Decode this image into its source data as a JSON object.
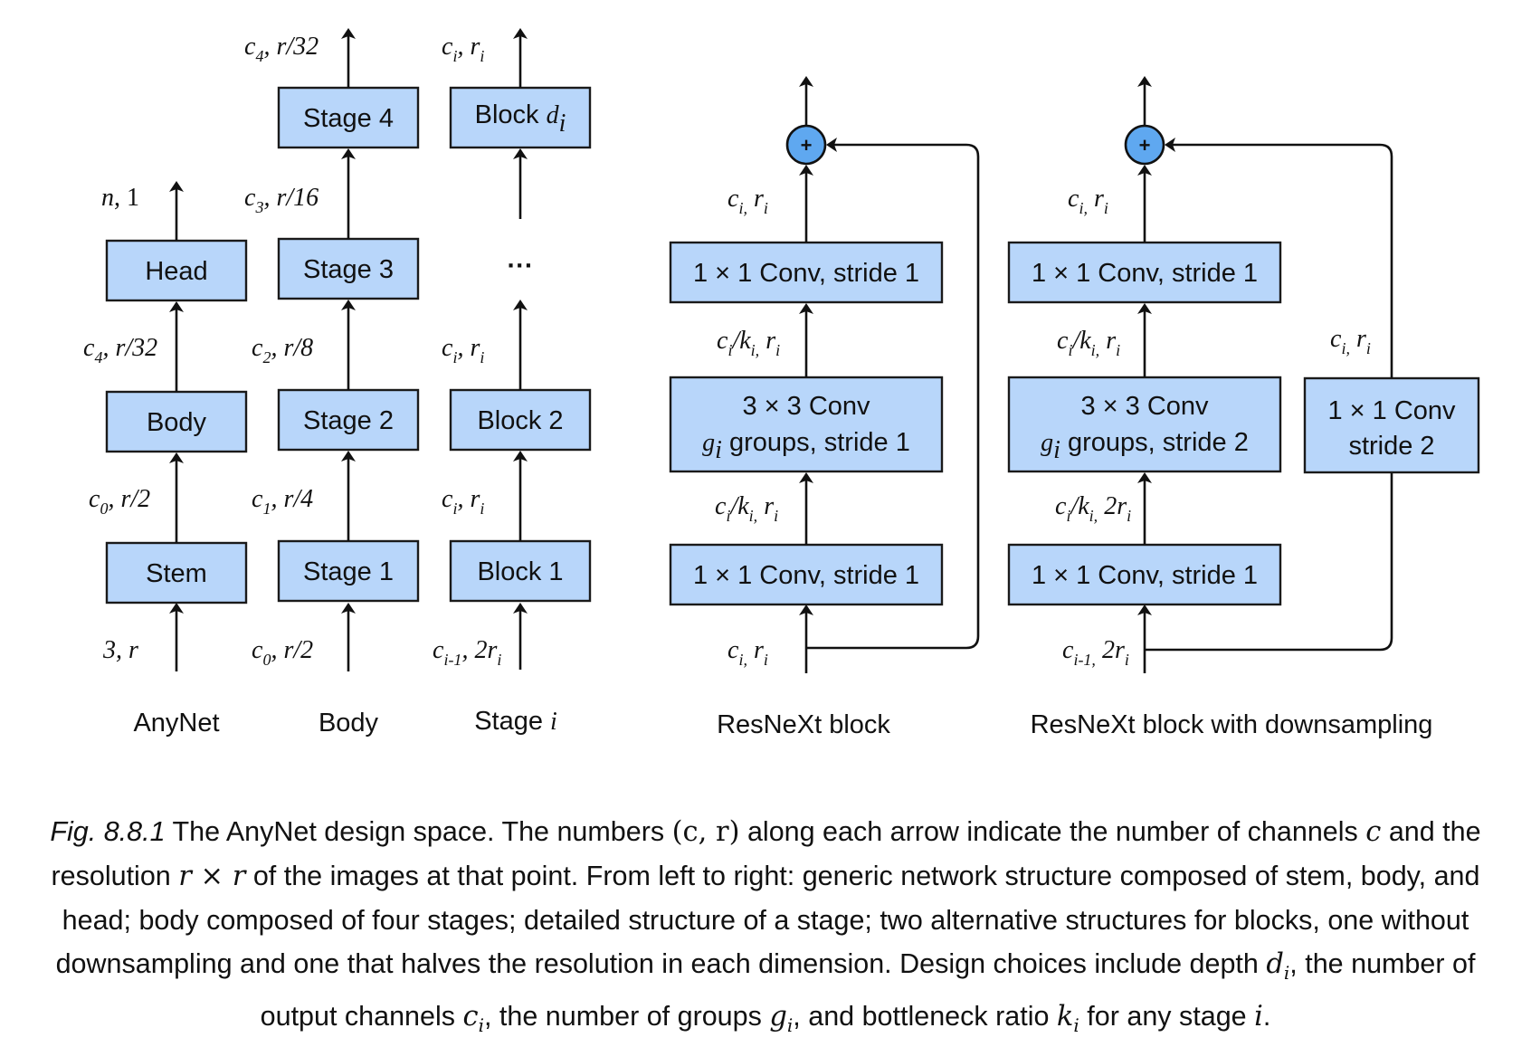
{
  "anynet": {
    "boxes": {
      "head": "Head",
      "body": "Body",
      "stem": "Stem"
    },
    "labels": {
      "head_out_main": "n",
      "head_out_rest": ", 1",
      "body_out_c": "c",
      "body_out_sub": "4",
      "body_out_rest": ", r/32",
      "stem_out_c": "c",
      "stem_out_sub": "0",
      "stem_out_rest": ", r/2",
      "input": "3, r"
    },
    "caption": "AnyNet"
  },
  "body": {
    "boxes": {
      "stage4": "Stage 4",
      "stage3": "Stage 3",
      "stage2": "Stage 2",
      "stage1": "Stage 1"
    },
    "labels": {
      "s4_out_c": "c",
      "s4_out_sub": "4",
      "s4_out_rest": ", r/32",
      "s3_out_c": "c",
      "s3_out_sub": "3",
      "s3_out_rest": ", r/16",
      "s2_out_c": "c",
      "s2_out_sub": "2",
      "s2_out_rest": ", r/8",
      "s1_out_c": "c",
      "s1_out_sub": "1",
      "s1_out_rest": ", r/4",
      "in_c": "c",
      "in_sub": "0",
      "in_rest": ", r/2"
    },
    "caption": "Body"
  },
  "stage": {
    "boxes": {
      "block_di_main": "Block ",
      "block_di_var": "d",
      "block_di_sub": "i",
      "dots": "···",
      "block2": "Block 2",
      "block1": "Block 1"
    },
    "labels": {
      "c": "c",
      "i": "i",
      "r": "r",
      "comma": ", ",
      "in_sub": "i-1",
      "in_mid": ", 2"
    },
    "caption_main": "Stage ",
    "caption_var": "i"
  },
  "resnext": {
    "boxes": {
      "top": "1 × 1 Conv, stride 1",
      "mid_line1": "3 × 3 Conv",
      "mid_g": "g",
      "mid_i": "i",
      "mid_line2": " groups, stride 1",
      "bottom": "1 × 1 Conv, stride 1"
    },
    "plus": "+",
    "labels": {
      "c": "c",
      "i": "i",
      "r": "r",
      "k": "k",
      "comma": ", ",
      "icomma": "i,",
      "slash": "/"
    },
    "caption": "ResNeXt block"
  },
  "resnext_ds": {
    "boxes": {
      "top": "1 × 1 Conv, stride 1",
      "mid_line1": "3 × 3 Conv",
      "mid_g": "g",
      "mid_i": "i",
      "mid_line2": " groups, stride 2",
      "bottom": "1 × 1 Conv, stride 1",
      "side_line1": "1 × 1 Conv",
      "side_line2": "stride 2"
    },
    "plus": "+",
    "labels": {
      "two_r": "2r",
      "in_sub": "i-1,"
    },
    "caption": "ResNeXt block with downsampling"
  },
  "caption": {
    "fig_no": "Fig. 8.8.1",
    "text_1": " The AnyNet design space. The numbers ",
    "math_cr": "(c, r)",
    "text_2": " along each arrow indicate the number of channels ",
    "math_c": "c",
    "text_3": " and the resolution ",
    "math_rxr": "r × r",
    "text_4": " of the images at that point. From left to right: generic network structure composed of stem, body, and head; body composed of four stages; detailed structure of a stage; two alternative structures for blocks, one without downsampling and one that halves the resolution in each dimension. Design choices include depth ",
    "math_d": "d",
    "text_5": ", the number of output channels ",
    "math_ci": "c",
    "text_6": ", the number of groups ",
    "math_g": "g",
    "text_7": ", and bottleneck ratio ",
    "math_k": "k",
    "text_8": " for any stage ",
    "math_i": "i",
    "text_9": ".",
    "sub_i": "i"
  },
  "colors": {
    "box_fill": "#b8d6fa",
    "plus_fill": "#5fa8f0",
    "stroke": "#111111"
  }
}
